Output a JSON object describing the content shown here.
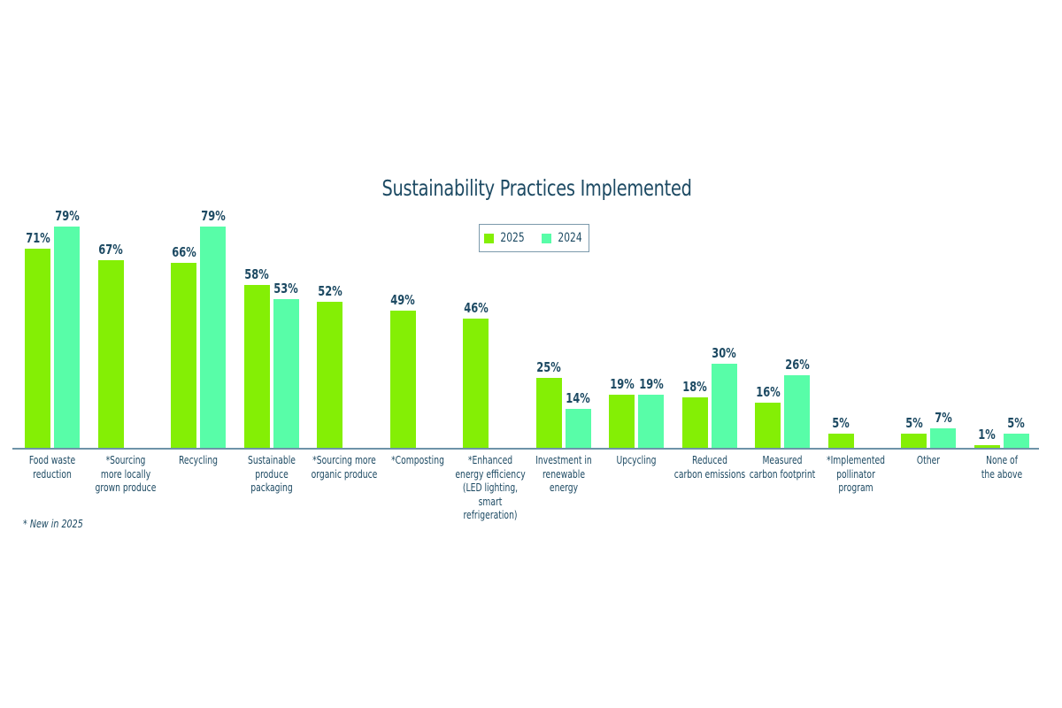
{
  "chart_data": {
    "type": "bar",
    "title": "Sustainability Practices Implemented",
    "xlabel": "",
    "ylabel": "",
    "ylim": [
      0,
      80
    ],
    "grid": false,
    "legend_position": "top-center",
    "categories": [
      "Food waste reduction",
      "*Sourcing more locally grown produce",
      "Recycling",
      "Sustainable produce packaging",
      "*Sourcing more organic produce",
      "*Composting",
      "*Enhanced energy efficiency (LED lighting, smart refrigeration)",
      "Investment in renewable energy",
      "Upcycling",
      "Reduced carbon emissions",
      "Measured carbon footprint",
      "*Implemented pollinator program",
      "Other",
      "None of the above"
    ],
    "series": [
      {
        "name": "2025",
        "color": "#84ef05",
        "values": [
          71,
          67,
          66,
          58,
          52,
          49,
          46,
          25,
          19,
          18,
          16,
          5,
          5,
          1
        ]
      },
      {
        "name": "2024",
        "color": "#58fda8",
        "values": [
          79,
          null,
          79,
          53,
          null,
          null,
          null,
          14,
          19,
          30,
          26,
          null,
          7,
          5
        ]
      }
    ],
    "annotations": [
      "* New in 2025"
    ]
  },
  "title": "Sustainability Practices Implemented",
  "legend": [
    {
      "label": "2025",
      "color": "#84ef05"
    },
    {
      "label": "2024",
      "color": "#58fda8"
    }
  ],
  "categories": [
    {
      "label": "Food waste\nreduction",
      "v2025": "71%",
      "v2024": "79%",
      "h2025": 71,
      "h2024": 79
    },
    {
      "label": "*Sourcing\nmore locally\ngrown produce",
      "v2025": "67%",
      "v2024": null,
      "h2025": 67,
      "h2024": null
    },
    {
      "label": "Recycling",
      "v2025": "66%",
      "v2024": "79%",
      "h2025": 66,
      "h2024": 79
    },
    {
      "label": "Sustainable\nproduce\npackaging",
      "v2025": "58%",
      "v2024": "53%",
      "h2025": 58,
      "h2024": 53
    },
    {
      "label": "*Sourcing more\norganic produce",
      "v2025": "52%",
      "v2024": null,
      "h2025": 52,
      "h2024": null
    },
    {
      "label": "*Composting",
      "v2025": "49%",
      "v2024": null,
      "h2025": 49,
      "h2024": null
    },
    {
      "label": "*Enhanced\nenergy efficiency\n(LED lighting,\nsmart\nrefrigeration)",
      "v2025": "46%",
      "v2024": null,
      "h2025": 46,
      "h2024": null
    },
    {
      "label": "Investment in\nrenewable\nenergy",
      "v2025": "25%",
      "v2024": "14%",
      "h2025": 25,
      "h2024": 14
    },
    {
      "label": "Upcycling",
      "v2025": "19%",
      "v2024": "19%",
      "h2025": 19,
      "h2024": 19
    },
    {
      "label": "Reduced\ncarbon emissions",
      "v2025": "18%",
      "v2024": "30%",
      "h2025": 18,
      "h2024": 30
    },
    {
      "label": "Measured\ncarbon footprint",
      "v2025": "16%",
      "v2024": "26%",
      "h2025": 16,
      "h2024": 26
    },
    {
      "label": "*Implemented\npollinator\nprogram",
      "v2025": "5%",
      "v2024": null,
      "h2025": 5,
      "h2024": null
    },
    {
      "label": "Other",
      "v2025": "5%",
      "v2024": "7%",
      "h2025": 5,
      "h2024": 7
    },
    {
      "label": "None of\nthe above",
      "v2025": "1%",
      "v2024": "5%",
      "h2025": 1,
      "h2024": 5
    }
  ],
  "footnote": "* New in 2025",
  "colors": {
    "series_2025": "#84ef05",
    "series_2024": "#58fda8",
    "text": "#1d4a63",
    "axis": "#6e93a8"
  }
}
